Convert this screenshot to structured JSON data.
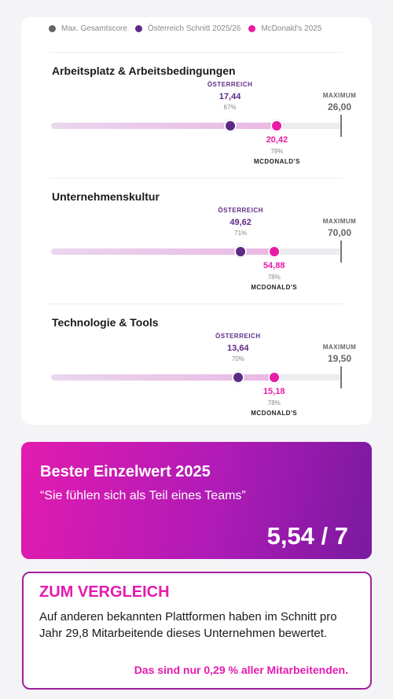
{
  "legend": {
    "items": [
      {
        "label": "Max. Gesamtscore",
        "color": "#666666"
      },
      {
        "label": "Österreich Schnitt 2025/26",
        "color": "#5d2a86"
      },
      {
        "label": "McDonald's 2025",
        "color": "#e91ca5"
      }
    ]
  },
  "sections": [
    {
      "title": "Arbeitsplatz & Arbeitsbedingungen",
      "austria_caption": "ÖSTERREICH",
      "austria_value": "17,44",
      "austria_pct": "67%",
      "austria_fraction": 0.67,
      "mcd_value": "20,42",
      "mcd_pct": "79%",
      "mcd_fraction": 0.79,
      "mcd_caption": "MCDONALD'S",
      "max_caption": "MAXIMUM",
      "max_value": "26,00"
    },
    {
      "title": "Unternehmenskultur",
      "austria_caption": "ÖSTERREICH",
      "austria_value": "49,62",
      "austria_pct": "71%",
      "austria_fraction": 0.71,
      "mcd_value": "54,88",
      "mcd_pct": "78%",
      "mcd_fraction": 0.78,
      "mcd_caption": "MCDONALD'S",
      "max_caption": "MAXIMUM",
      "max_value": "70,00"
    },
    {
      "title": "Technologie & Tools",
      "austria_caption": "ÖSTERREICH",
      "austria_value": "13,64",
      "austria_pct": "70%",
      "austria_fraction": 0.7,
      "mcd_value": "15,18",
      "mcd_pct": "78%",
      "mcd_fraction": 0.78,
      "mcd_caption": "MCDONALD'S",
      "max_caption": "MAXIMUM",
      "max_value": "19,50"
    }
  ],
  "best": {
    "title": "Bester Einzelwert 2025",
    "quote": "“Sie fühlen sich als Teil eines Teams”",
    "score": "5,54 / 7"
  },
  "compare": {
    "title": "ZUM VERGLEICH",
    "text": "Auf anderen bekannten Plattformen haben im Schnitt pro Jahr 29,8 Mitarbeitende dieses Unternehmen bewertet.",
    "note": "Das sind nur 0,29 % aller Mitarbeitenden."
  }
}
